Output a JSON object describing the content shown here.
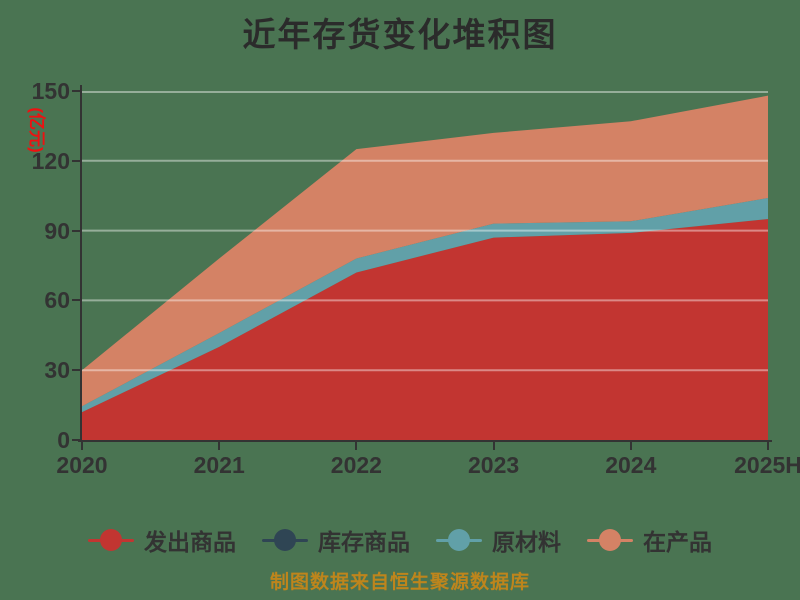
{
  "title": "近年存货变化堆积图",
  "footer": "制图数据来自恒生聚源数据库",
  "colors": {
    "background": "#4A7452",
    "title_text": "#2B2B2B",
    "axis_line": "#333333",
    "tick_label": "#333333",
    "y_unit_label": "#EE1111",
    "footer_text": "#BE851C",
    "gridline": "rgba(255,255,255,0.42)"
  },
  "chart_data": {
    "type": "area",
    "stacked": true,
    "title": "近年存货变化堆积图",
    "ylabel": "(亿元)",
    "xlabel": "",
    "categories": [
      "2020",
      "2021",
      "2022",
      "2023",
      "2024",
      "2025H"
    ],
    "series": [
      {
        "name": "发出商品",
        "color": "#C23531",
        "values": [
          12,
          40,
          72,
          87,
          89,
          95
        ]
      },
      {
        "name": "库存商品",
        "color": "#2F4554",
        "values": [
          0,
          0,
          0,
          0,
          0,
          0
        ]
      },
      {
        "name": "原材料",
        "color": "#61A0A8",
        "values": [
          2.5,
          6,
          6,
          6,
          5,
          9
        ]
      },
      {
        "name": "在产品",
        "color": "#D48265",
        "values": [
          15.5,
          32,
          47,
          39,
          43,
          44
        ]
      }
    ],
    "stacked_totals": [
      30,
      78,
      125,
      132,
      137,
      148
    ],
    "ylim": [
      0,
      150
    ],
    "yticks": [
      0,
      30,
      60,
      90,
      120,
      150
    ],
    "grid": true,
    "legend_position": "bottom"
  }
}
